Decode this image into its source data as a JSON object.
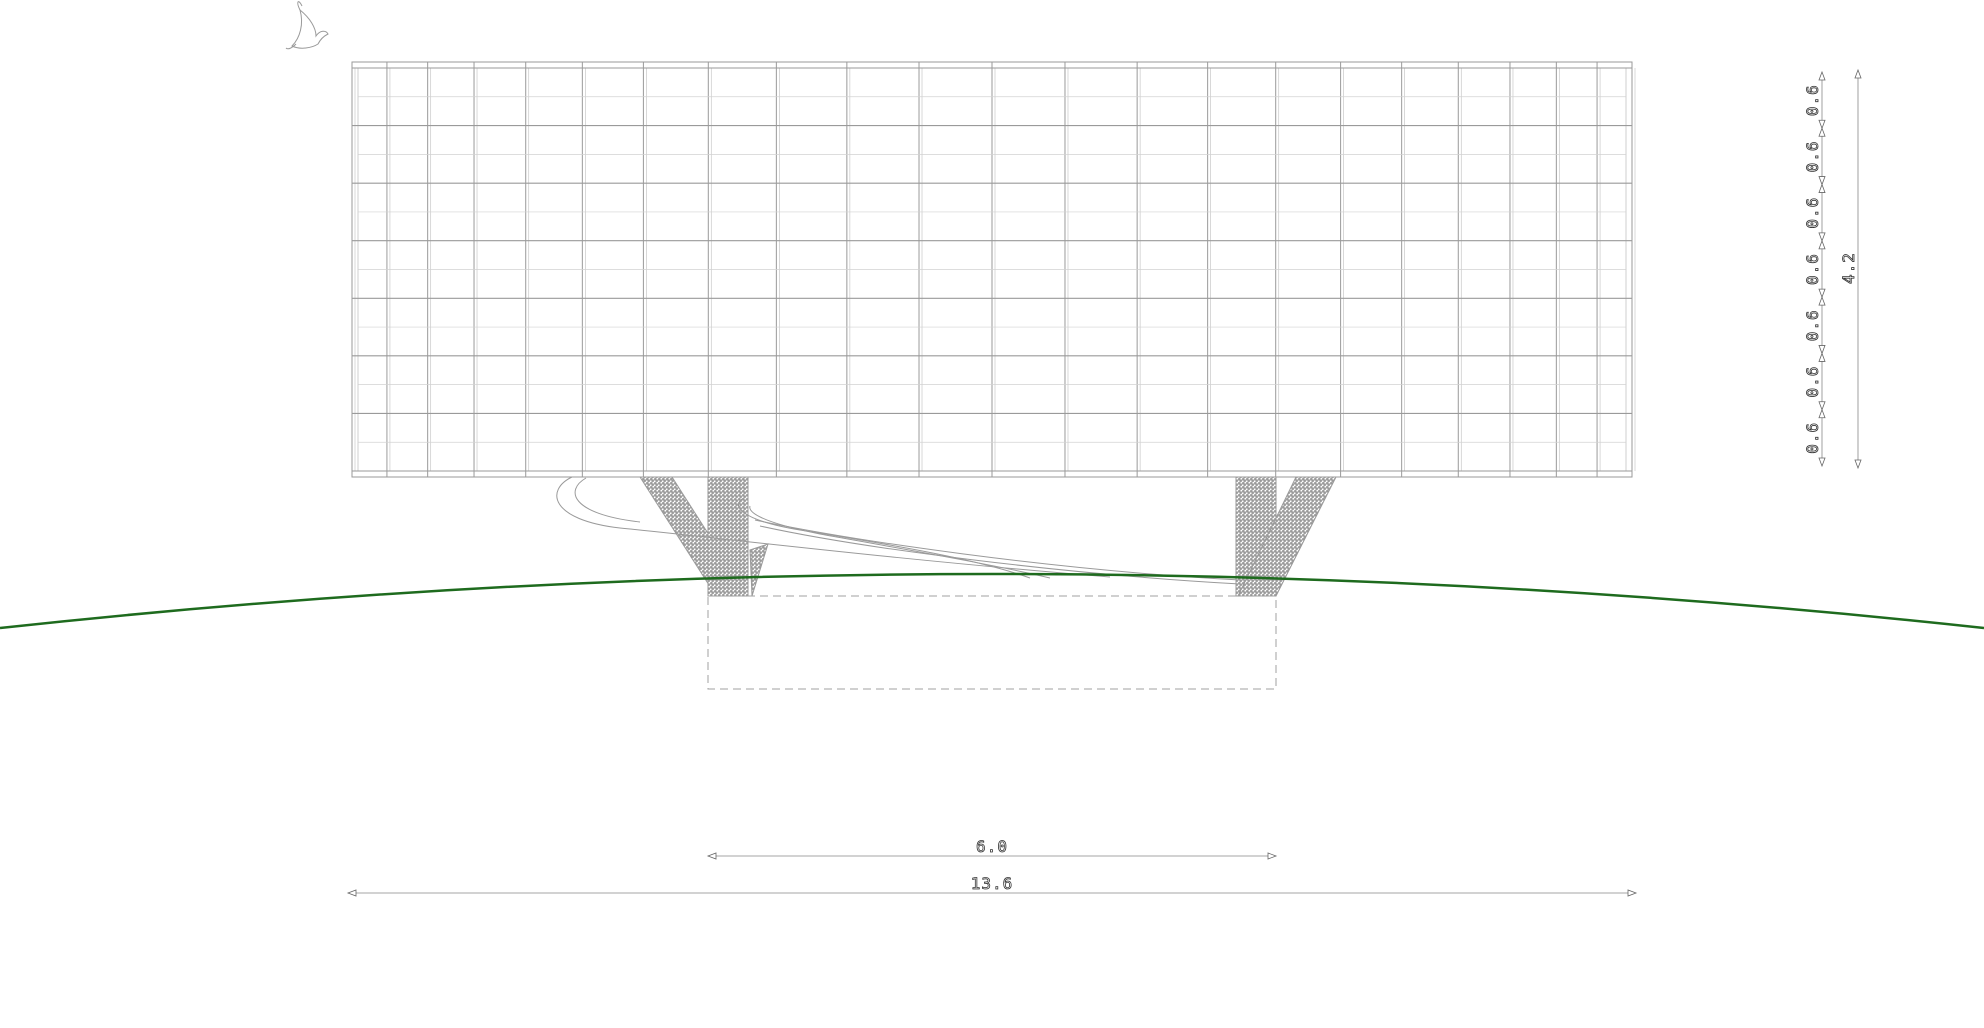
{
  "drawing": {
    "description_free": true,
    "ground_color": "#1e6b1e",
    "line_color": "#9a9a9a",
    "grid": {
      "columns": 22,
      "rows": 7
    },
    "dimensions": {
      "horizontal": [
        {
          "label": "6.0",
          "id": "span-support"
        },
        {
          "label": "13.6",
          "id": "span-total"
        }
      ],
      "vertical_segments": [
        "0.6",
        "0.6",
        "0.6",
        "0.6",
        "0.6",
        "0.6",
        "0.6"
      ],
      "vertical_total": "4.2"
    }
  }
}
